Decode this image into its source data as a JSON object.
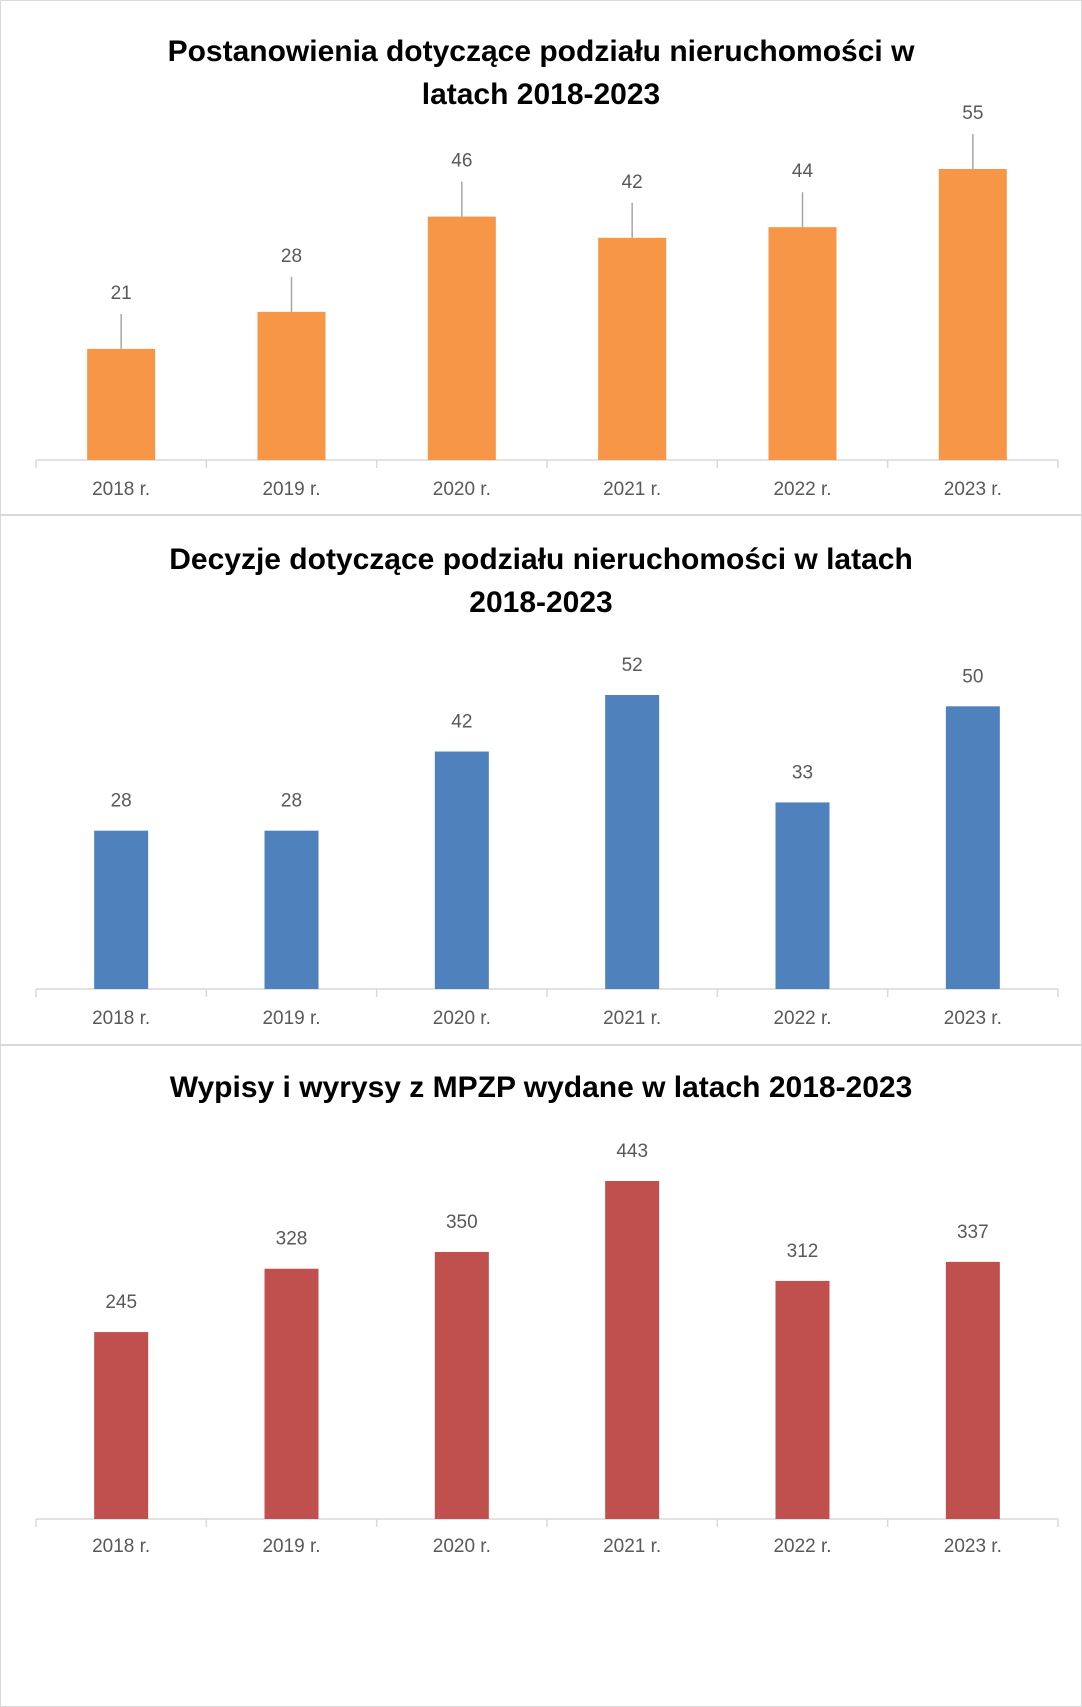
{
  "chart_data": [
    {
      "type": "bar",
      "title": "Postanowienia dotyczące podziału nieruchomości w latach 2018-2023",
      "categories": [
        "2018 r.",
        "2019 r.",
        "2020 r.",
        "2021 r.",
        "2022 r.",
        "2023 r."
      ],
      "values": [
        21,
        28,
        46,
        42,
        44,
        55
      ],
      "color": "#f79646"
    },
    {
      "type": "bar",
      "title": "Decyzje dotyczące podziału nieruchomości w latach 2018-2023",
      "categories": [
        "2018 r.",
        "2019 r.",
        "2020 r.",
        "2021 r.",
        "2022 r.",
        "2023 r."
      ],
      "values": [
        28,
        28,
        42,
        52,
        33,
        50
      ],
      "color": "#4f81bd"
    },
    {
      "type": "bar",
      "title": "Wypisy i wyrysy z MPZP wydane w latach 2018-2023",
      "categories": [
        "2018 r.",
        "2019 r.",
        "2020 r.",
        "2021 r.",
        "2022 r.",
        "2023 r."
      ],
      "values": [
        245,
        328,
        350,
        443,
        312,
        337
      ],
      "color": "#c0504d"
    }
  ]
}
